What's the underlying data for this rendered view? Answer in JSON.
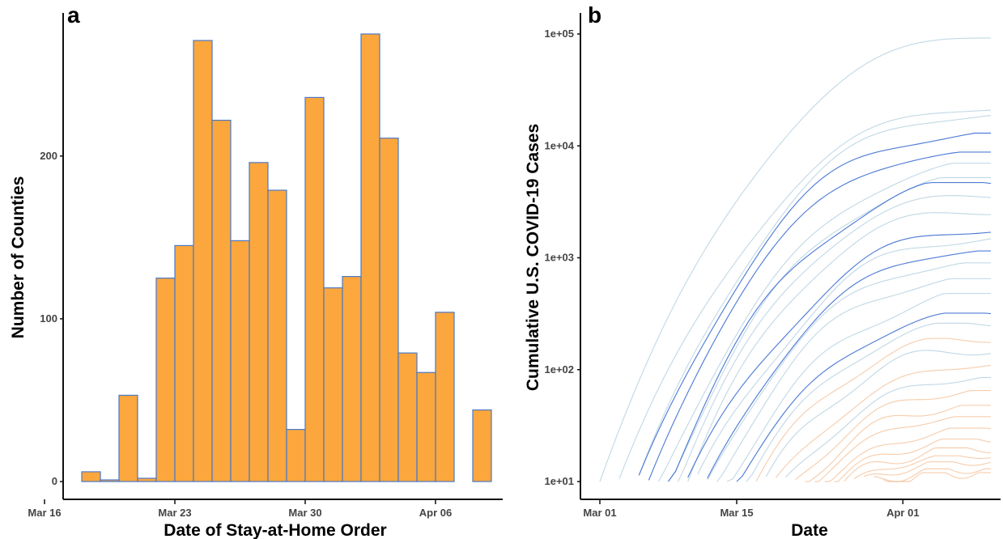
{
  "panels": {
    "a": {
      "letter": "a",
      "xlabel": "Date of Stay-at-Home Order",
      "ylabel": "Number of Counties"
    },
    "b": {
      "letter": "b",
      "xlabel": "Date",
      "ylabel": "Cumulative U.S. COVID-19 Cases"
    }
  },
  "chart_data": [
    {
      "type": "bar",
      "subtype": "histogram",
      "xlabel": "Date of Stay-at-Home Order",
      "ylabel": "Number of Counties",
      "xtick_labels": [
        "Mar 16",
        "Mar 23",
        "Mar 30",
        "Apr 06"
      ],
      "ytick_labels": [
        "0",
        "100",
        "200"
      ],
      "ylim": [
        0,
        275
      ],
      "bins": [
        {
          "x": "2020-03-18",
          "value": 6
        },
        {
          "x": "2020-03-19",
          "value": 1
        },
        {
          "x": "2020-03-20",
          "value": 53
        },
        {
          "x": "2020-03-21",
          "value": 2
        },
        {
          "x": "2020-03-22",
          "value": 125
        },
        {
          "x": "2020-03-23",
          "value": 145
        },
        {
          "x": "2020-03-24",
          "value": 271
        },
        {
          "x": "2020-03-25",
          "value": 222
        },
        {
          "x": "2020-03-26",
          "value": 148
        },
        {
          "x": "2020-03-27",
          "value": 196
        },
        {
          "x": "2020-03-28",
          "value": 179
        },
        {
          "x": "2020-03-29",
          "value": 32
        },
        {
          "x": "2020-03-30",
          "value": 236
        },
        {
          "x": "2020-03-31",
          "value": 119
        },
        {
          "x": "2020-04-01",
          "value": 126
        },
        {
          "x": "2020-04-02",
          "value": 275
        },
        {
          "x": "2020-04-03",
          "value": 211
        },
        {
          "x": "2020-04-04",
          "value": 79
        },
        {
          "x": "2020-04-05",
          "value": 67
        },
        {
          "x": "2020-04-06",
          "value": 104
        },
        {
          "x": "2020-04-07",
          "value": 0
        },
        {
          "x": "2020-04-08",
          "value": 44
        }
      ],
      "colors": {
        "fill": "#FBA73D",
        "stroke": "#4A78C8"
      },
      "grid": false,
      "legend": "none"
    },
    {
      "type": "line",
      "xlabel": "Date",
      "ylabel": "Cumulative U.S. COVID-19 Cases",
      "y_scale": "log",
      "ylim": [
        10,
        100000
      ],
      "xlim": [
        "2020-03-01",
        "2020-04-10"
      ],
      "xtick_labels": [
        "Mar 01",
        "Mar 15",
        "Apr 01"
      ],
      "ytick_labels": [
        "1e+01",
        "1e+02",
        "1e+03",
        "1e+04",
        "1e+05"
      ],
      "series": [
        {
          "start": "2020-03-01",
          "end": "2020-04-10",
          "final": 97000,
          "color": "#A9C9DB"
        },
        {
          "start": "2020-03-03",
          "end": "2020-04-10",
          "final": 22000,
          "color": "#A9C9DB"
        },
        {
          "start": "2020-03-05",
          "end": "2020-04-10",
          "final": 19000,
          "color": "#A9C9DB"
        },
        {
          "start": "2020-03-05",
          "end": "2020-04-10",
          "final": 13000,
          "color": "#3D6FD1"
        },
        {
          "start": "2020-03-06",
          "end": "2020-04-10",
          "final": 8800,
          "color": "#3D6FD1"
        },
        {
          "start": "2020-03-07",
          "end": "2020-04-10",
          "final": 7000,
          "color": "#A9C9DB"
        },
        {
          "start": "2020-03-08",
          "end": "2020-04-10",
          "final": 5200,
          "color": "#A9C9DB"
        },
        {
          "start": "2020-03-08",
          "end": "2020-04-10",
          "final": 4700,
          "color": "#3D6FD1"
        },
        {
          "start": "2020-03-09",
          "end": "2020-04-10",
          "final": 3600,
          "color": "#A9C9DB"
        },
        {
          "start": "2020-03-10",
          "end": "2020-04-10",
          "final": 2600,
          "color": "#A9C9DB"
        },
        {
          "start": "2020-03-10",
          "end": "2020-04-10",
          "final": 1800,
          "color": "#3D6FD1"
        },
        {
          "start": "2020-03-11",
          "end": "2020-04-10",
          "final": 1500,
          "color": "#A9C9DB"
        },
        {
          "start": "2020-03-12",
          "end": "2020-04-10",
          "final": 1150,
          "color": "#3D6FD1"
        },
        {
          "start": "2020-03-12",
          "end": "2020-04-10",
          "final": 900,
          "color": "#A9C9DB"
        },
        {
          "start": "2020-03-13",
          "end": "2020-04-10",
          "final": 650,
          "color": "#A9C9DB"
        },
        {
          "start": "2020-03-14",
          "end": "2020-04-10",
          "final": 480,
          "color": "#A9C9DB"
        },
        {
          "start": "2020-03-15",
          "end": "2020-04-10",
          "final": 320,
          "color": "#3D6FD1"
        },
        {
          "start": "2020-03-16",
          "end": "2020-04-10",
          "final": 260,
          "color": "#A9C9DB"
        },
        {
          "start": "2020-03-17",
          "end": "2020-04-10",
          "final": 190,
          "color": "#F2B98C"
        },
        {
          "start": "2020-03-18",
          "end": "2020-04-10",
          "final": 150,
          "color": "#A9C9DB"
        },
        {
          "start": "2020-03-19",
          "end": "2020-04-10",
          "final": 110,
          "color": "#F2B98C"
        },
        {
          "start": "2020-03-20",
          "end": "2020-04-10",
          "final": 85,
          "color": "#A9C9DB"
        },
        {
          "start": "2020-03-21",
          "end": "2020-04-10",
          "final": 65,
          "color": "#F2B98C"
        },
        {
          "start": "2020-03-22",
          "end": "2020-04-10",
          "final": 48,
          "color": "#F2B98C"
        },
        {
          "start": "2020-03-23",
          "end": "2020-04-10",
          "final": 38,
          "color": "#F2B98C"
        },
        {
          "start": "2020-03-24",
          "end": "2020-04-10",
          "final": 30,
          "color": "#F2B98C"
        },
        {
          "start": "2020-03-25",
          "end": "2020-04-10",
          "final": 24,
          "color": "#F2B98C"
        },
        {
          "start": "2020-03-26",
          "end": "2020-04-10",
          "final": 20,
          "color": "#F2B98C"
        },
        {
          "start": "2020-03-27",
          "end": "2020-04-10",
          "final": 17,
          "color": "#F2B98C"
        },
        {
          "start": "2020-03-28",
          "end": "2020-04-10",
          "final": 15,
          "color": "#F2B98C"
        },
        {
          "start": "2020-03-29",
          "end": "2020-04-10",
          "final": 13,
          "color": "#F2B98C"
        },
        {
          "start": "2020-03-30",
          "end": "2020-04-10",
          "final": 12,
          "color": "#F2B98C"
        }
      ],
      "grid": false,
      "legend": "none"
    }
  ]
}
